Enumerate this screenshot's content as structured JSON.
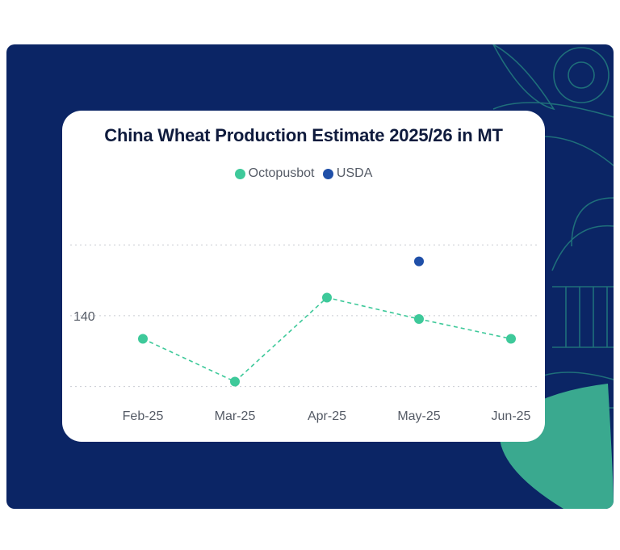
{
  "colors": {
    "background_panel": "#0b2565",
    "decor_line": "#1f6f7a",
    "leaf": "#3aa98f",
    "octopusbot": "#3ec99a",
    "usda": "#1f4fa8"
  },
  "chart_data": {
    "type": "line",
    "title": "China Wheat Production Estimate 2025/26 in MT",
    "categories": [
      "Feb-25",
      "Mar-25",
      "Apr-25",
      "May-25",
      "Jun-25"
    ],
    "series": [
      {
        "name": "Octopusbot",
        "values": [
          138.6,
          136.0,
          141.1,
          139.8,
          138.6
        ],
        "line": "dashed",
        "color": "#3ec99a"
      },
      {
        "name": "USDA",
        "values": [
          null,
          null,
          null,
          143.3,
          null
        ],
        "line": "none",
        "color": "#1f4fa8"
      }
    ],
    "yticks": [
      140
    ],
    "ylim": [
      134.7,
      144.8
    ],
    "xlabel": "",
    "ylabel": "",
    "grid": "horizontal dotted",
    "legend": "top-center"
  }
}
